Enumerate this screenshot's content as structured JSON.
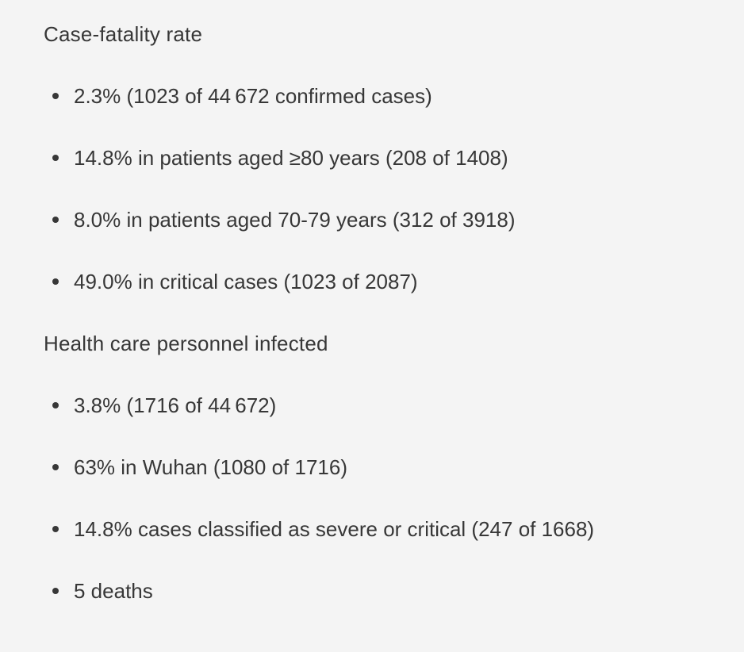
{
  "colors": {
    "background": "#f4f4f4",
    "text": "#373737",
    "bullet": "#373737"
  },
  "icons": {
    "bullet": "filled-circle"
  },
  "sections": [
    {
      "heading": "Case-fatality rate",
      "items": [
        "2.3% (1023 of 44 672 confirmed cases)",
        "14.8% in patients aged ≥80 years (208 of 1408)",
        "8.0% in patients aged 70-79 years (312 of 3918)",
        "49.0% in critical cases (1023 of 2087)"
      ]
    },
    {
      "heading": "Health care personnel infected",
      "items": [
        "3.8% (1716 of 44 672)",
        "63% in Wuhan (1080 of 1716)",
        "14.8% cases classified as severe or critical (247 of 1668)",
        "5 deaths"
      ]
    }
  ]
}
